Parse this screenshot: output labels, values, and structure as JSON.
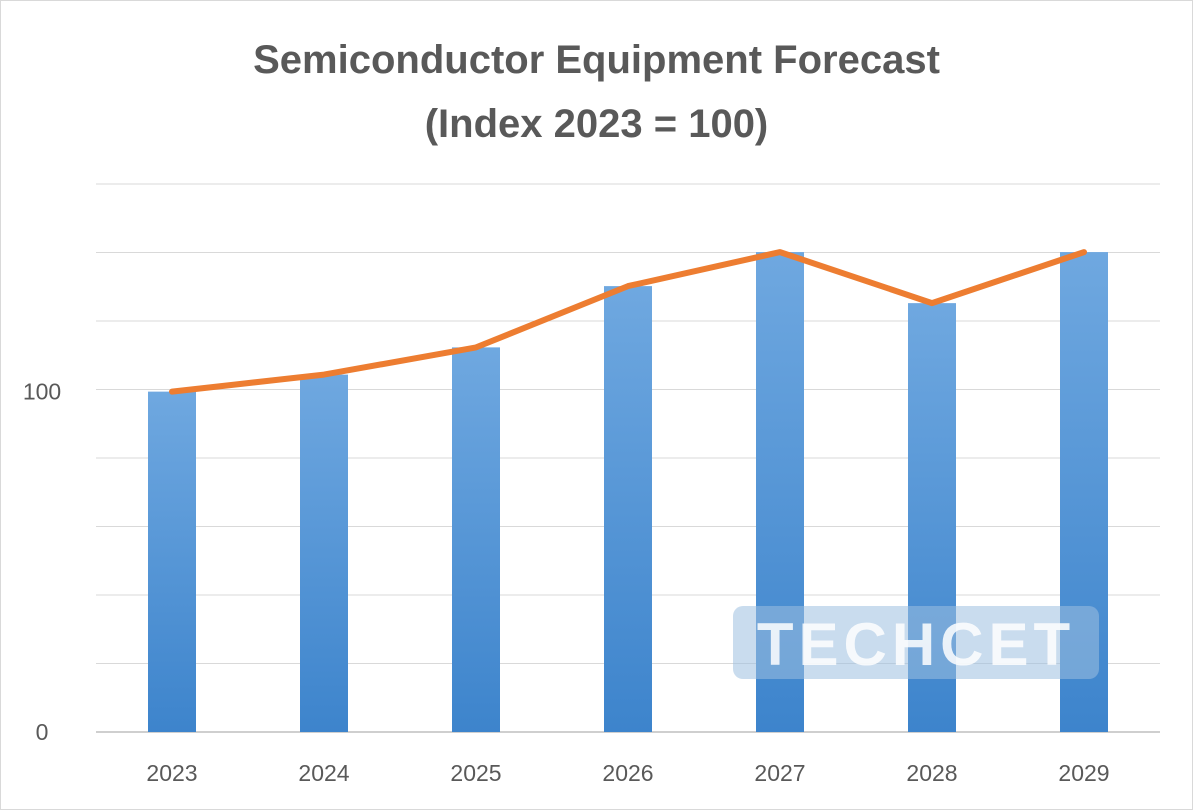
{
  "chart_data": {
    "type": "bar+line",
    "title": "Semiconductor Equipment Forecast",
    "subtitle": "(Index 2023 = 100)",
    "categories": [
      "2023",
      "2024",
      "2025",
      "2026",
      "2027",
      "2028",
      "2029"
    ],
    "series": [
      {
        "type": "bar",
        "values": [
          100,
          105,
          113,
          131,
          141,
          126,
          141
        ],
        "color": "#4a90d9"
      },
      {
        "type": "line",
        "values": [
          100,
          105,
          113,
          131,
          141,
          126,
          141
        ],
        "color": "#ed7d31"
      }
    ],
    "ylim": [
      0,
      161
    ],
    "ytick_labels": [
      {
        "value": 0,
        "label": "0"
      },
      {
        "value": 100,
        "label": "100"
      }
    ],
    "grid": true,
    "legend": "none",
    "watermark": "TECHCET"
  }
}
